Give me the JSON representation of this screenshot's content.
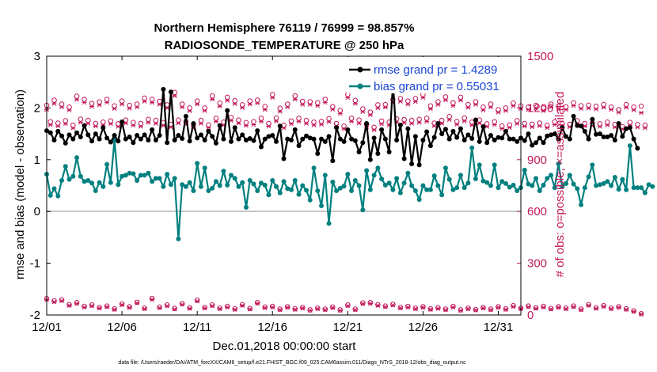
{
  "chart_data": {
    "type": "line",
    "title": "Northern Hemisphere 76119 / 76999 = 98.857%",
    "subtitle": "RADIOSONDE_TEMPERATURE @ 250 hPa",
    "xlabel": "Dec.01,2018 00:00:00 start",
    "ylabel": "rmse and bias (model - observation)",
    "ylabel_right": "# of obs: o=possible; ×=assimilated",
    "footer": "data file: /Users/raeder/DAI/ATM_forcXX/CAM6_setup/f.e21.FHIST_BGC.f09_025.CAM6assim.011/Diags_NTrS_2018-12/obs_diag_output.nc",
    "ylim": [
      -2,
      3
    ],
    "y2lim": [
      0,
      1500
    ],
    "xlim": [
      0,
      31.5
    ],
    "x_ticks": [
      0,
      5,
      10,
      15,
      20,
      25,
      30
    ],
    "x_tick_labels": [
      "12/01",
      "12/06",
      "12/11",
      "12/16",
      "12/21",
      "12/26",
      "12/31"
    ],
    "y_tick_labels": [
      "-2",
      "-1",
      "0",
      "1",
      "2",
      "3"
    ],
    "y2_tick_labels": [
      "0",
      "300",
      "600",
      "900",
      "1200",
      "1500"
    ],
    "colors": {
      "rmse": "#000000",
      "bias": "#00807f",
      "obs": "#c2185b",
      "zero": "#b3b3b3",
      "legend_text": "#1a44d6"
    },
    "legend": [
      {
        "name": "rmse grand pr = 1.4289"
      },
      {
        "name": "bias grand pr = 0.55031"
      }
    ],
    "step_days": 0.25,
    "series": [
      {
        "name": "rmse",
        "values": [
          1.56,
          1.52,
          1.38,
          1.55,
          1.46,
          1.32,
          1.48,
          1.4,
          1.52,
          1.44,
          1.66,
          1.48,
          1.36,
          1.5,
          1.4,
          1.62,
          1.42,
          1.34,
          1.47,
          1.36,
          1.73,
          1.4,
          1.44,
          1.33,
          1.47,
          1.4,
          1.48,
          1.38,
          1.58,
          1.38,
          1.47,
          2.36,
          1.33,
          2.31,
          1.38,
          1.47,
          1.41,
          1.84,
          1.36,
          1.7,
          1.42,
          1.48,
          1.38,
          1.55,
          1.45,
          1.32,
          1.66,
          1.4,
          1.95,
          1.35,
          1.62,
          1.4,
          1.48,
          1.38,
          1.41,
          1.37,
          1.56,
          1.25,
          1.4,
          1.45,
          1.47,
          1.35,
          1.65,
          1.02,
          1.4,
          1.38,
          1.58,
          1.27,
          1.4,
          1.46,
          1.42,
          1.4,
          1.12,
          1.4,
          1.35,
          1.45,
          0.98,
          1.62,
          1.4,
          1.35,
          1.58,
          1.4,
          1.37,
          1.15,
          1.33,
          1.7,
          1.0,
          1.42,
          1.12,
          1.58,
          1.4,
          1.15,
          2.49,
          1.38,
          1.67,
          1.02,
          1.6,
          0.92,
          1.45,
          0.9,
          1.38,
          1.54,
          1.27,
          1.43,
          1.7,
          1.5,
          1.59,
          1.4,
          1.55,
          1.43,
          1.6,
          1.38,
          1.48,
          1.41,
          1.77,
          1.35,
          1.64,
          1.33,
          1.47,
          1.38,
          1.43,
          1.42,
          1.55,
          1.4,
          1.4,
          1.35,
          1.42,
          1.37,
          1.5,
          1.28,
          1.33,
          1.42,
          1.33,
          1.46,
          1.48,
          1.5,
          1.4,
          1.62,
          1.45,
          1.4,
          1.84,
          1.66,
          1.65,
          1.55,
          1.4,
          1.78,
          1.49,
          1.5,
          1.44,
          1.44,
          1.47,
          1.38,
          1.7,
          1.45,
          1.6,
          1.62,
          1.4,
          1.22
        ]
      },
      {
        "name": "bias",
        "values": [
          0.72,
          0.31,
          0.44,
          0.3,
          0.6,
          0.87,
          0.62,
          0.68,
          1.04,
          0.68,
          0.58,
          0.6,
          0.55,
          0.4,
          0.56,
          0.48,
          0.91,
          0.56,
          1.38,
          0.52,
          0.68,
          0.7,
          0.74,
          0.73,
          0.6,
          0.7,
          0.7,
          0.74,
          0.58,
          0.64,
          0.64,
          0.48,
          0.72,
          0.52,
          0.64,
          -0.53,
          0.52,
          0.48,
          0.56,
          0.4,
          0.93,
          0.48,
          0.84,
          0.4,
          0.45,
          0.58,
          0.5,
          0.78,
          0.51,
          0.7,
          0.64,
          0.48,
          0.56,
          0.08,
          0.6,
          0.53,
          0.4,
          0.55,
          0.51,
          0.32,
          0.6,
          0.48,
          0.36,
          0.58,
          0.44,
          0.42,
          0.6,
          0.33,
          0.5,
          0.41,
          0.22,
          0.84,
          0.4,
          0.11,
          0.7,
          -0.23,
          0.57,
          0.4,
          0.45,
          0.49,
          0.72,
          0.4,
          0.6,
          0.5,
          0.03,
          0.79,
          0.42,
          0.7,
          0.84,
          0.63,
          0.51,
          0.55,
          0.42,
          0.64,
          0.36,
          0.55,
          0.74,
          0.5,
          0.4,
          0.23,
          0.5,
          0.42,
          0.42,
          0.69,
          0.5,
          0.32,
          0.84,
          0.62,
          0.42,
          0.46,
          0.7,
          0.46,
          0.55,
          1.23,
          0.63,
          0.9,
          0.59,
          0.56,
          0.5,
          0.9,
          0.46,
          0.58,
          0.54,
          0.47,
          0.51,
          0.4,
          0.46,
          0.8,
          0.53,
          0.5,
          0.64,
          0.4,
          0.51,
          0.64,
          0.7,
          0.46,
          0.92,
          0.48,
          0.54,
          0.7,
          0.53,
          0.44,
          0.13,
          0.46,
          0.67,
          0.9,
          0.5,
          0.52,
          0.54,
          0.58,
          0.5,
          0.66,
          0.43,
          0.62,
          0.42,
          1.27,
          0.46,
          0.46,
          0.46,
          0.36,
          0.52,
          0.48
        ]
      },
      {
        "name": "obs_possible_odd",
        "values": [
          1215,
          1245,
          1222,
          1205,
          1268,
          1250,
          1226,
          1235,
          1250,
          1212,
          1240,
          1215,
          1222,
          1257,
          1250,
          1238,
          1218,
          1290,
          1222,
          1200,
          1240,
          1200,
          1270,
          1228,
          1262,
          1242,
          1218,
          1240,
          1245,
          1208,
          1278,
          1198,
          1222,
          1270,
          1238,
          1236,
          1230,
          1250,
          1208,
          1185,
          1278,
          1244,
          1195,
          1176,
          1218,
          1220,
          1248,
          1255,
          1240,
          1255,
          1278,
          1212,
          1236,
          1264,
          1230,
          1262,
          1220,
          1236,
          1205,
          1222,
          1190,
          1200,
          1228,
          1212,
          1205,
          1215,
          1200,
          1222,
          1210,
          1206,
          1230,
          1213,
          1216,
          1210,
          1220,
          1205,
          1190,
          1220,
          1205,
          1210
        ]
      },
      {
        "name": "obs_assimilated_odd",
        "values": [
          1190,
          1225,
          1205,
          1188,
          1248,
          1232,
          1208,
          1217,
          1232,
          1196,
          1222,
          1198,
          1205,
          1238,
          1231,
          1220,
          1200,
          1270,
          1205,
          1183,
          1222,
          1184,
          1250,
          1210,
          1243,
          1224,
          1202,
          1222,
          1228,
          1190,
          1260,
          1180,
          1205,
          1250,
          1220,
          1220,
          1213,
          1232,
          1192,
          1168,
          1260,
          1226,
          1178,
          1160,
          1200,
          1204,
          1230,
          1238,
          1222,
          1237,
          1260,
          1195,
          1220,
          1246,
          1213,
          1245,
          1203,
          1220,
          1188,
          1205,
          1175,
          1184,
          1212,
          1196,
          1190,
          1198,
          1184,
          1205,
          1193,
          1190,
          1213,
          1196,
          1199,
          1193,
          1203,
          1190,
          1174,
          1203,
          1188,
          1172
        ]
      },
      {
        "name": "obs_possible_even",
        "values": [
          1120,
          1112,
          1126,
          1100,
          1135,
          1128,
          1110,
          1118,
          1125,
          1108,
          1130,
          1116,
          1110,
          1134,
          1128,
          1115,
          1105,
          1130,
          1122,
          1098,
          1128,
          1102,
          1140,
          1118,
          1145,
          1130,
          1115,
          1120,
          1140,
          1110,
          1142,
          1100,
          1125,
          1140,
          1128,
          1118,
          1122,
          1138,
          1110,
          1095,
          1140,
          1130,
          1105,
          1088,
          1124,
          1118,
          1136,
          1132,
          1128,
          1134,
          1140,
          1112,
          1128,
          1150,
          1122,
          1142,
          1118,
          1130,
          1108,
          1120,
          1095,
          1102,
          1126,
          1110,
          1106,
          1112,
          1100,
          1120,
          1108,
          1105,
          1126,
          1110,
          1112,
          1108,
          1118,
          1104,
          1092,
          1116,
          1104,
          1100
        ]
      },
      {
        "name": "obs_assimilated_even",
        "values": [
          1102,
          1095,
          1108,
          1083,
          1117,
          1110,
          1094,
          1101,
          1108,
          1092,
          1112,
          1099,
          1093,
          1116,
          1110,
          1098,
          1089,
          1112,
          1105,
          1082,
          1110,
          1086,
          1122,
          1101,
          1127,
          1112,
          1098,
          1103,
          1122,
          1094,
          1124,
          1084,
          1108,
          1122,
          1110,
          1101,
          1105,
          1120,
          1094,
          1079,
          1122,
          1112,
          1089,
          1073,
          1107,
          1101,
          1118,
          1114,
          1110,
          1116,
          1122,
          1096,
          1110,
          1132,
          1105,
          1124,
          1101,
          1112,
          1092,
          1103,
          1080,
          1086,
          1109,
          1094,
          1090,
          1096,
          1085,
          1103,
          1092,
          1090,
          1109,
          1094,
          1096,
          1092,
          1101,
          1088,
          1077,
          1100,
          1088,
          1084
        ]
      },
      {
        "name": "obs_possible_low",
        "values": [
          95,
          82,
          88,
          60,
          72,
          50,
          58,
          44,
          52,
          36,
          64,
          48,
          74,
          40,
          96,
          46,
          58,
          38,
          66,
          42,
          86,
          44,
          58,
          40,
          50,
          36,
          60,
          38,
          72,
          46,
          50,
          34,
          48,
          36,
          44,
          30,
          40,
          34,
          46,
          30,
          58,
          34,
          70,
          72,
          60,
          52,
          62,
          44,
          50,
          40,
          48,
          36,
          42,
          34,
          50,
          30,
          40,
          32,
          44,
          34,
          48,
          36,
          54,
          40,
          52,
          42,
          50,
          38,
          48,
          40,
          52,
          34,
          60,
          42,
          54,
          40,
          48,
          36,
          24,
          8
        ]
      },
      {
        "name": "obs_assimilated_low",
        "values": [
          88,
          76,
          82,
          55,
          66,
          45,
          53,
          40,
          47,
          32,
          59,
          43,
          69,
          36,
          90,
          41,
          53,
          34,
          61,
          38,
          80,
          40,
          53,
          36,
          45,
          32,
          55,
          34,
          67,
          42,
          45,
          30,
          44,
          32,
          40,
          26,
          36,
          30,
          42,
          26,
          53,
          30,
          65,
          67,
          55,
          47,
          57,
          40,
          45,
          36,
          44,
          32,
          38,
          30,
          45,
          26,
          36,
          28,
          40,
          30,
          44,
          32,
          49,
          36,
          47,
          38,
          45,
          34,
          44,
          36,
          47,
          30,
          55,
          38,
          49,
          36,
          44,
          32,
          20,
          5
        ]
      }
    ]
  }
}
